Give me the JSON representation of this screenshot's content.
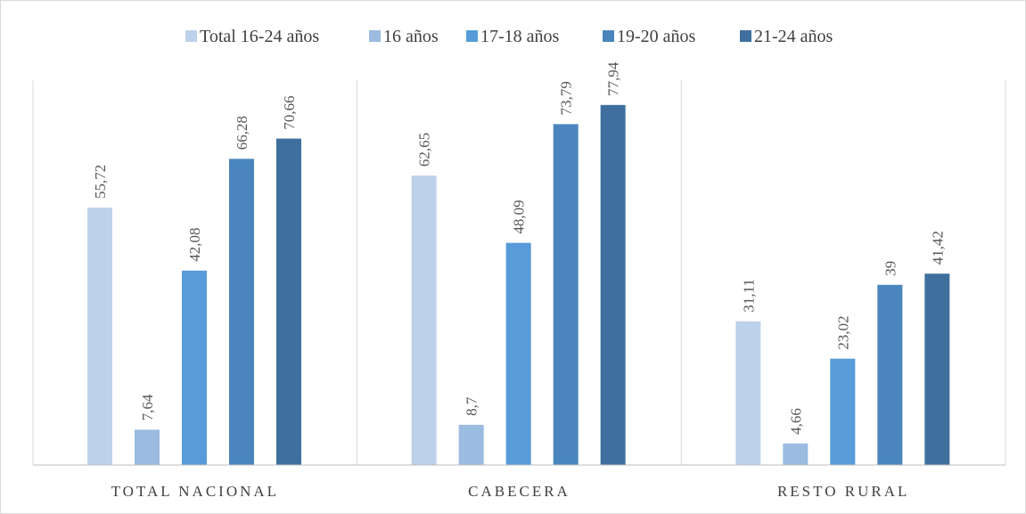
{
  "colors": {
    "axis": "#bfbfbf",
    "divider": "#d9d9d9"
  },
  "chart_data": {
    "type": "bar",
    "categories": [
      "TOTAL NACIONAL",
      "CABECERA",
      "RESTO RURAL"
    ],
    "series": [
      {
        "name": "Total 16-24 años",
        "color": "#bdd1ea",
        "values": [
          55.72,
          62.65,
          31.11
        ],
        "labels": [
          "55,72",
          "62,65",
          "31,11"
        ]
      },
      {
        "name": "16 años",
        "color": "#9bbbe0",
        "values": [
          7.64,
          8.7,
          4.66
        ],
        "labels": [
          "7,64",
          "8,7",
          "4,66"
        ]
      },
      {
        "name": "17-18 años",
        "color": "#579bd8",
        "values": [
          42.08,
          48.09,
          23.02
        ],
        "labels": [
          "42,08",
          "48,09",
          "23,02"
        ]
      },
      {
        "name": "19-20 años",
        "color": "#4a86bd",
        "values": [
          66.28,
          73.79,
          39
        ],
        "labels": [
          "66,28",
          "73,79",
          "39"
        ]
      },
      {
        "name": "21-24 años",
        "color": "#3f709d",
        "values": [
          70.66,
          77.94,
          41.42
        ],
        "labels": [
          "70,66",
          "77,94",
          "41,42"
        ]
      }
    ],
    "title": "",
    "xlabel": "",
    "ylabel": "",
    "ylim": [
      0,
      80
    ],
    "grid": false,
    "legend_position": "top"
  }
}
